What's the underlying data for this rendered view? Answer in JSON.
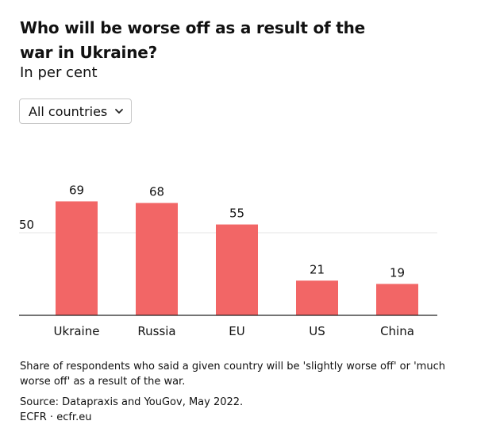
{
  "header": {
    "title": "Who will be worse off as a result of the war in Ukraine?",
    "subtitle": "In per cent"
  },
  "filter": {
    "selected": "All countries",
    "icon": "chevron-down-icon"
  },
  "chart_data": {
    "type": "bar",
    "title": "Who will be worse off as a result of the war in Ukraine?",
    "subtitle": "In per cent",
    "categories": [
      "Ukraine",
      "Russia",
      "EU",
      "US",
      "China"
    ],
    "values": [
      69,
      68,
      55,
      21,
      19
    ],
    "ylim": [
      0,
      100
    ],
    "yticks": [
      50
    ],
    "xlabel": "",
    "ylabel": "",
    "bar_color": "#f26666",
    "grid": true,
    "legend": "none"
  },
  "footer": {
    "note": "Share of respondents who said a given country will be 'slightly worse off' or 'much worse off' as a result of the war.",
    "source": "Source: Datapraxis and YouGov, May 2022.",
    "credit": "ECFR · ecfr.eu"
  }
}
